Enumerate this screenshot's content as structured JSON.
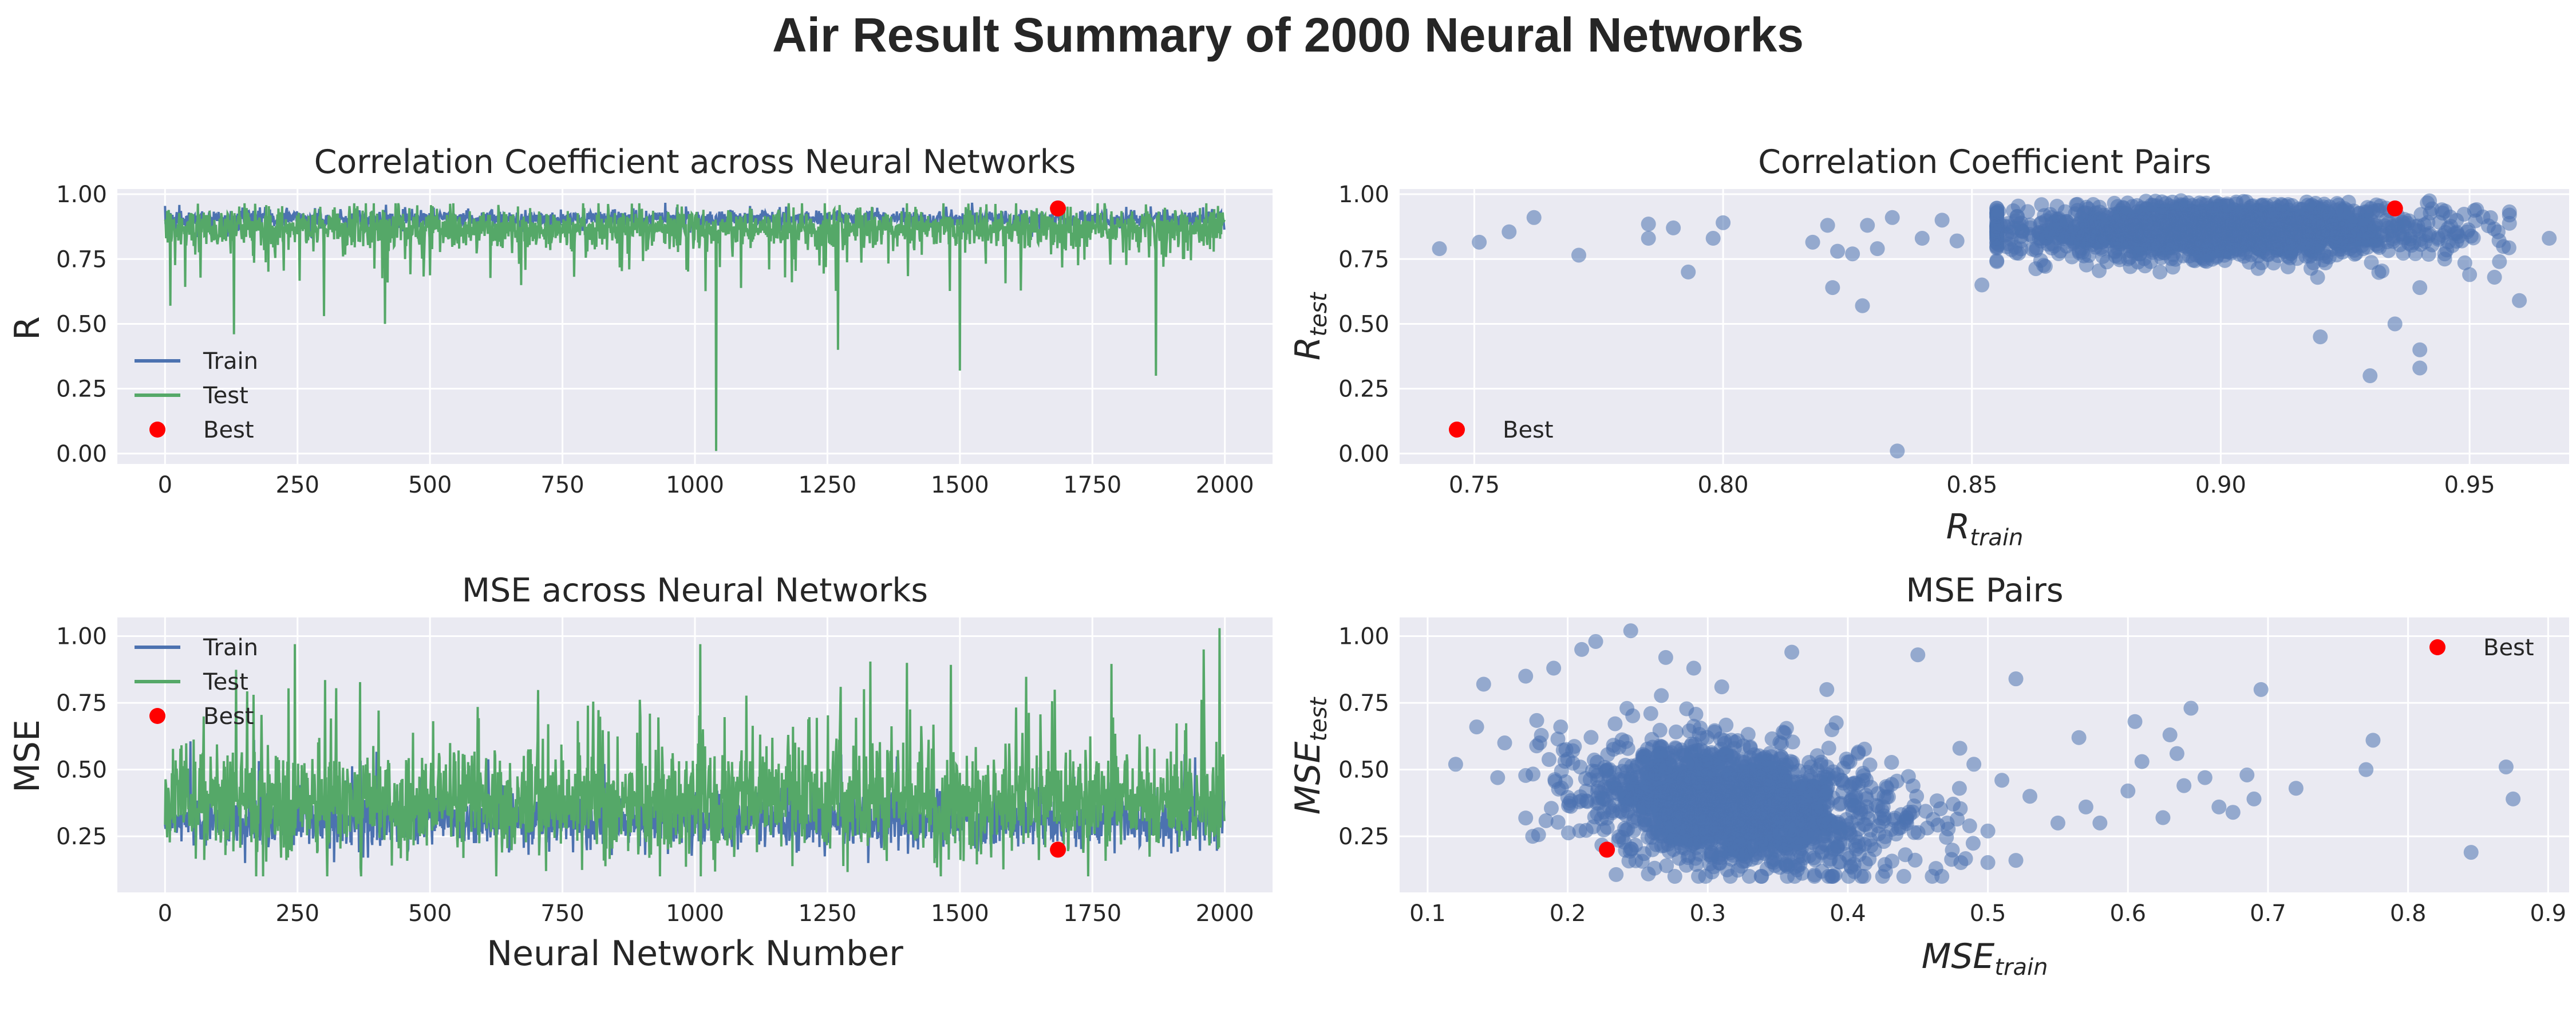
{
  "figure": {
    "suptitle": "Air Result Summary of 2000 Neural Networks"
  },
  "colors": {
    "train": "#4c72b0",
    "test": "#55a868",
    "best": "#ff0000",
    "background": "#eaeaf2",
    "grid": "#ffffff"
  },
  "chart_data": [
    {
      "type": "line",
      "title": "Correlation Coefficient across Neural Networks",
      "xlabel": "",
      "ylabel": "R",
      "xlim": [
        -90,
        2090
      ],
      "ylim": [
        -0.04,
        1.02
      ],
      "xticks": [
        0,
        250,
        500,
        750,
        1000,
        1250,
        1500,
        1750,
        2000
      ],
      "xtick_labels": [
        "0",
        "250",
        "500",
        "750",
        "1000",
        "1250",
        "1500",
        "1750",
        "2000"
      ],
      "yticks": [
        0.0,
        0.25,
        0.5,
        0.75,
        1.0
      ],
      "ytick_labels": [
        "0.00",
        "0.25",
        "0.50",
        "0.75",
        "1.00"
      ],
      "grid": true,
      "legend": {
        "position": "lower-left",
        "entries": [
          "Train",
          "Test",
          "Best"
        ]
      },
      "series": [
        {
          "name": "Train",
          "n": 2000,
          "typical_range": [
            0.86,
            0.95
          ],
          "mean": 0.905,
          "min": 0.74,
          "max": 0.967
        },
        {
          "name": "Test",
          "n": 2000,
          "typical_range": [
            0.7,
            0.96
          ],
          "mean": 0.86,
          "notable_dips": [
            {
              "x": 10,
              "y": 0.57
            },
            {
              "x": 130,
              "y": 0.46
            },
            {
              "x": 300,
              "y": 0.53
            },
            {
              "x": 415,
              "y": 0.5
            },
            {
              "x": 1040,
              "y": 0.01
            },
            {
              "x": 1270,
              "y": 0.4
            },
            {
              "x": 1500,
              "y": 0.32
            },
            {
              "x": 1870,
              "y": 0.3
            }
          ]
        }
      ],
      "best": {
        "x": 1685,
        "y": 0.945
      }
    },
    {
      "type": "scatter",
      "title": "Correlation Coefficient Pairs",
      "xlabel": "R_train",
      "ylabel": "R_test",
      "xlim": [
        0.735,
        0.97
      ],
      "ylim": [
        -0.04,
        1.02
      ],
      "xticks": [
        0.75,
        0.8,
        0.85,
        0.9,
        0.95
      ],
      "xtick_labels": [
        "0.75",
        "0.80",
        "0.85",
        "0.90",
        "0.95"
      ],
      "yticks": [
        0.0,
        0.25,
        0.5,
        0.75,
        1.0
      ],
      "ytick_labels": [
        "0.00",
        "0.25",
        "0.50",
        "0.75",
        "1.00"
      ],
      "grid": true,
      "legend": {
        "position": "lower-left",
        "entries": [
          "Best"
        ]
      },
      "outliers": [
        [
          0.743,
          0.79
        ],
        [
          0.751,
          0.815
        ],
        [
          0.757,
          0.855
        ],
        [
          0.762,
          0.91
        ],
        [
          0.771,
          0.765
        ],
        [
          0.785,
          0.885
        ],
        [
          0.785,
          0.83
        ],
        [
          0.79,
          0.87
        ],
        [
          0.793,
          0.7
        ],
        [
          0.798,
          0.83
        ],
        [
          0.8,
          0.89
        ],
        [
          0.818,
          0.815
        ],
        [
          0.821,
          0.88
        ],
        [
          0.822,
          0.64
        ],
        [
          0.823,
          0.78
        ],
        [
          0.826,
          0.77
        ],
        [
          0.828,
          0.57
        ],
        [
          0.829,
          0.88
        ],
        [
          0.831,
          0.79
        ],
        [
          0.834,
          0.91
        ],
        [
          0.835,
          0.01
        ],
        [
          0.84,
          0.83
        ],
        [
          0.844,
          0.9
        ],
        [
          0.847,
          0.82
        ],
        [
          0.852,
          0.65
        ],
        [
          0.855,
          0.74
        ],
        [
          0.92,
          0.45
        ],
        [
          0.93,
          0.3
        ],
        [
          0.94,
          0.33
        ],
        [
          0.94,
          0.4
        ],
        [
          0.935,
          0.5
        ],
        [
          0.956,
          0.74
        ],
        [
          0.96,
          0.59
        ],
        [
          0.966,
          0.83
        ],
        [
          0.95,
          0.69
        ],
        [
          0.945,
          0.77
        ],
        [
          0.94,
          0.64
        ],
        [
          0.955,
          0.68
        ]
      ],
      "cluster": {
        "center": [
          0.9,
          0.86
        ],
        "spread": [
          0.021,
          0.05
        ],
        "count": 1900
      },
      "best": {
        "x": 0.935,
        "y": 0.945
      }
    },
    {
      "type": "line",
      "title": "MSE across Neural Networks",
      "xlabel": "Neural Network Number",
      "ylabel": "MSE",
      "xlim": [
        -90,
        2090
      ],
      "ylim": [
        0.04,
        1.07
      ],
      "xticks": [
        0,
        250,
        500,
        750,
        1000,
        1250,
        1500,
        1750,
        2000
      ],
      "xtick_labels": [
        "0",
        "250",
        "500",
        "750",
        "1000",
        "1250",
        "1500",
        "1750",
        "2000"
      ],
      "yticks": [
        0.25,
        0.5,
        0.75,
        1.0
      ],
      "ytick_labels": [
        "0.25",
        "0.50",
        "0.75",
        "1.00"
      ],
      "grid": true,
      "legend": {
        "position": "upper-left",
        "entries": [
          "Train",
          "Test",
          "Best"
        ]
      },
      "series": [
        {
          "name": "Train",
          "n": 2000,
          "typical_range": [
            0.15,
            0.5
          ],
          "mean": 0.32
        },
        {
          "name": "Test",
          "n": 2000,
          "typical_range": [
            0.12,
            0.95
          ],
          "mean": 0.4,
          "notable_peaks": [
            {
              "x": 245,
              "y": 0.97
            },
            {
              "x": 1010,
              "y": 0.97
            },
            {
              "x": 1990,
              "y": 1.03
            },
            {
              "x": 1400,
              "y": 0.9
            },
            {
              "x": 1960,
              "y": 0.95
            }
          ]
        }
      ],
      "best": {
        "x": 1685,
        "y": 0.2
      }
    },
    {
      "type": "scatter",
      "title": "MSE Pairs",
      "xlabel": "MSE_train",
      "ylabel": "MSE_test",
      "xlim": [
        0.08,
        0.915
      ],
      "ylim": [
        0.04,
        1.07
      ],
      "xticks": [
        0.1,
        0.2,
        0.3,
        0.4,
        0.5,
        0.6,
        0.7,
        0.8,
        0.9
      ],
      "xtick_labels": [
        "0.1",
        "0.2",
        "0.3",
        "0.4",
        "0.5",
        "0.6",
        "0.7",
        "0.8",
        "0.9"
      ],
      "yticks": [
        0.25,
        0.5,
        0.75,
        1.0
      ],
      "ytick_labels": [
        "0.25",
        "0.50",
        "0.75",
        "1.00"
      ],
      "grid": true,
      "legend": {
        "position": "upper-right",
        "entries": [
          "Best"
        ]
      },
      "outliers": [
        [
          0.12,
          0.52
        ],
        [
          0.135,
          0.66
        ],
        [
          0.14,
          0.82
        ],
        [
          0.15,
          0.47
        ],
        [
          0.155,
          0.6
        ],
        [
          0.17,
          0.85
        ],
        [
          0.175,
          0.25
        ],
        [
          0.18,
          0.6
        ],
        [
          0.19,
          0.88
        ],
        [
          0.195,
          0.66
        ],
        [
          0.21,
          0.95
        ],
        [
          0.22,
          0.98
        ],
        [
          0.245,
          1.02
        ],
        [
          0.27,
          0.92
        ],
        [
          0.29,
          0.88
        ],
        [
          0.31,
          0.81
        ],
        [
          0.36,
          0.94
        ],
        [
          0.385,
          0.8
        ],
        [
          0.45,
          0.93
        ],
        [
          0.52,
          0.84
        ],
        [
          0.48,
          0.58
        ],
        [
          0.49,
          0.52
        ],
        [
          0.51,
          0.46
        ],
        [
          0.53,
          0.4
        ],
        [
          0.55,
          0.3
        ],
        [
          0.565,
          0.62
        ],
        [
          0.57,
          0.36
        ],
        [
          0.58,
          0.3
        ],
        [
          0.6,
          0.42
        ],
        [
          0.605,
          0.68
        ],
        [
          0.61,
          0.53
        ],
        [
          0.625,
          0.32
        ],
        [
          0.63,
          0.63
        ],
        [
          0.635,
          0.56
        ],
        [
          0.64,
          0.44
        ],
        [
          0.645,
          0.73
        ],
        [
          0.655,
          0.47
        ],
        [
          0.665,
          0.36
        ],
        [
          0.675,
          0.34
        ],
        [
          0.685,
          0.48
        ],
        [
          0.69,
          0.39
        ],
        [
          0.695,
          0.8
        ],
        [
          0.72,
          0.43
        ],
        [
          0.77,
          0.5
        ],
        [
          0.775,
          0.61
        ],
        [
          0.845,
          0.19
        ],
        [
          0.87,
          0.51
        ],
        [
          0.875,
          0.39
        ],
        [
          0.5,
          0.27
        ],
        [
          0.52,
          0.16
        ]
      ],
      "cluster": {
        "center": [
          0.31,
          0.38
        ],
        "spread": [
          0.045,
          0.11
        ],
        "count": 1900
      },
      "best": {
        "x": 0.228,
        "y": 0.2
      }
    }
  ]
}
